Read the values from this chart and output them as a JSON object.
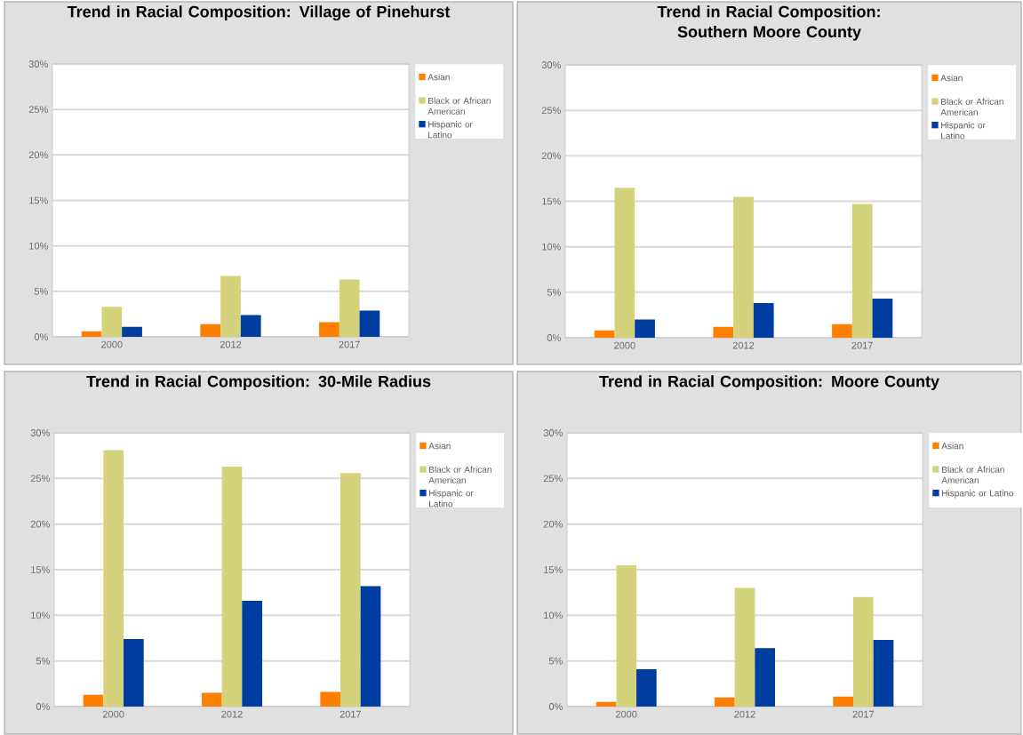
{
  "chart_data": [
    {
      "type": "bar",
      "title": "Trend in Racial Composition: Village of Pinehurst",
      "categories": [
        "2000",
        "2012",
        "2017"
      ],
      "series": [
        {
          "name": "Asian",
          "color": "#ff7f00",
          "values": [
            0.6,
            1.4,
            1.6
          ]
        },
        {
          "name": "Black or African American",
          "color": "#d4d37b",
          "values": [
            3.3,
            6.7,
            6.3
          ]
        },
        {
          "name": "Hispanic or Latino",
          "color": "#003da0",
          "values": [
            1.1,
            2.4,
            2.9
          ]
        }
      ],
      "ylim": [
        0,
        30
      ],
      "yticks": [
        {
          "value": 0,
          "label": "0%"
        },
        {
          "value": 5,
          "label": "5%"
        },
        {
          "value": 10,
          "label": "10%"
        },
        {
          "value": 15,
          "label": "15%"
        },
        {
          "value": 20,
          "label": "20%"
        },
        {
          "value": 25,
          "label": "25%"
        },
        {
          "value": 30,
          "label": "30%"
        }
      ],
      "grid": "y",
      "legend": "right"
    },
    {
      "type": "bar",
      "title": "Trend in Racial Composition: Southern Moore County",
      "categories": [
        "2000",
        "2012",
        "2017"
      ],
      "series": [
        {
          "name": "Asian",
          "color": "#ff7f00",
          "values": [
            0.8,
            1.2,
            1.5
          ]
        },
        {
          "name": "Black or African American",
          "color": "#d4d37b",
          "values": [
            16.5,
            15.5,
            14.7
          ]
        },
        {
          "name": "Hispanic or Latino",
          "color": "#003da0",
          "values": [
            2.0,
            3.8,
            4.3
          ]
        }
      ],
      "ylim": [
        0,
        30
      ],
      "yticks": [
        {
          "value": 0,
          "label": "0%"
        },
        {
          "value": 5,
          "label": "5%"
        },
        {
          "value": 10,
          "label": "10%"
        },
        {
          "value": 15,
          "label": "15%"
        },
        {
          "value": 20,
          "label": "20%"
        },
        {
          "value": 25,
          "label": "25%"
        },
        {
          "value": 30,
          "label": "30%"
        }
      ],
      "grid": "y",
      "legend": "right"
    },
    {
      "type": "bar",
      "title": "Trend in Racial Composition: 30-Mile Radius",
      "categories": [
        "2000",
        "2012",
        "2017"
      ],
      "series": [
        {
          "name": "Asian",
          "color": "#ff7f00",
          "values": [
            1.3,
            1.5,
            1.6
          ]
        },
        {
          "name": "Black or African American",
          "color": "#d4d37b",
          "values": [
            28.1,
            26.3,
            25.6
          ]
        },
        {
          "name": "Hispanic or Latino",
          "color": "#003da0",
          "values": [
            7.4,
            11.6,
            13.2
          ]
        }
      ],
      "ylim": [
        0,
        30
      ],
      "yticks": [
        {
          "value": 0,
          "label": "0%"
        },
        {
          "value": 5,
          "label": "5%"
        },
        {
          "value": 10,
          "label": "10%"
        },
        {
          "value": 15,
          "label": "15%"
        },
        {
          "value": 20,
          "label": "20%"
        },
        {
          "value": 25,
          "label": "25%"
        },
        {
          "value": 30,
          "label": "30%"
        }
      ],
      "grid": "y",
      "legend": "right"
    },
    {
      "type": "bar",
      "title": "Trend in Racial Composition: Moore County",
      "categories": [
        "2000",
        "2012",
        "2017"
      ],
      "series": [
        {
          "name": "Asian",
          "color": "#ff7f00",
          "values": [
            0.5,
            1.0,
            1.1
          ]
        },
        {
          "name": "Black or African American",
          "color": "#d4d37b",
          "values": [
            15.5,
            13.0,
            12.0
          ]
        },
        {
          "name": "Hispanic or Latino",
          "color": "#003da0",
          "values": [
            4.1,
            6.4,
            7.3
          ]
        }
      ],
      "ylim": [
        0,
        30
      ],
      "yticks": [
        {
          "value": 0,
          "label": "0%"
        },
        {
          "value": 5,
          "label": "5%"
        },
        {
          "value": 10,
          "label": "10%"
        },
        {
          "value": 15,
          "label": "15%"
        },
        {
          "value": 20,
          "label": "20%"
        },
        {
          "value": 25,
          "label": "25%"
        },
        {
          "value": 30,
          "label": "30%"
        }
      ],
      "grid": "y",
      "legend": "right"
    }
  ]
}
